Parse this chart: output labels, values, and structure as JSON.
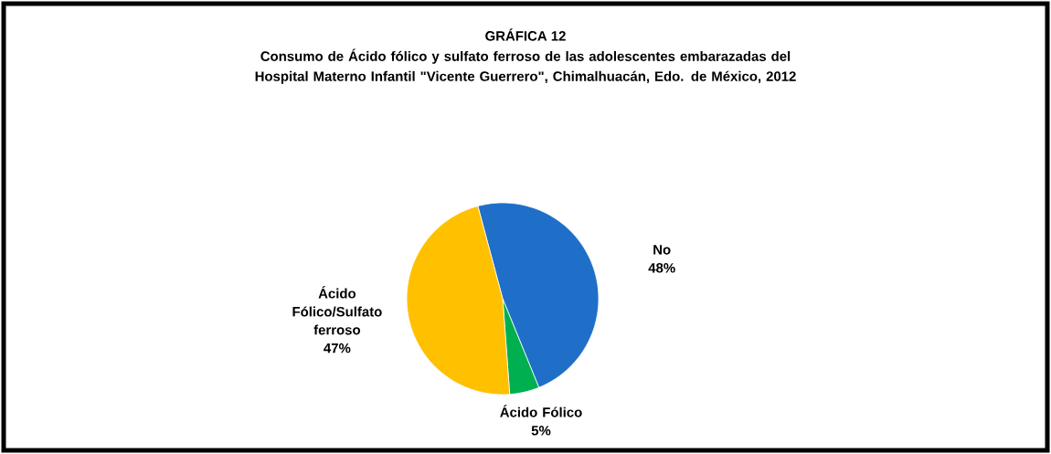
{
  "chart_data": {
    "type": "pie",
    "title": "GRÁFICA 12",
    "subtitle": "Consumo de Ácido fólico y sulfato ferroso de las adolescentes embarazadas del Hospital Materno Infantil \"Vicente Guerrero\", Chimalhuacán, Edo. de México, 2012",
    "categories": [
      "No",
      "Ácido Fólico",
      "Ácido Fólico/Sulfato ferroso"
    ],
    "values": [
      48,
      5,
      47
    ],
    "value_labels": [
      "48%",
      "5%",
      "47%"
    ],
    "colors": [
      "#1f6fc8",
      "#00b050",
      "#ffc000"
    ]
  }
}
